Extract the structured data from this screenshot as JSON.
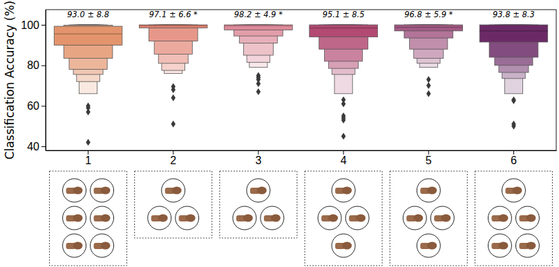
{
  "chart_data": {
    "type": "boxen",
    "y_label": "Classification Accuracy (%)",
    "categories": [
      "1",
      "2",
      "3",
      "4",
      "5",
      "6"
    ],
    "colors": [
      "#e3946c",
      "#e38373",
      "#dc8a99",
      "#b24a72",
      "#a45a85",
      "#6b2a66"
    ],
    "annotations": [
      "93.0 ± 8.8",
      "97.1 ± 6.6 *",
      "98.2 ± 4.9 *",
      "95.1 ± 8.5",
      "96.8 ± 5.9 *",
      "93.8 ± 8.3"
    ],
    "medians": [
      95.5,
      99.6,
      99.6,
      98.5,
      98.8,
      97.0
    ],
    "levels": [
      [
        [
          90,
          99.3
        ],
        [
          83.5,
          99.8
        ],
        [
          78,
          100
        ],
        [
          75.5,
          100
        ],
        [
          72,
          100
        ],
        [
          66,
          100
        ]
      ],
      [
        [
          98.5,
          100
        ],
        [
          92,
          100
        ],
        [
          85.5,
          100
        ],
        [
          81,
          100
        ],
        [
          77.5,
          100
        ],
        [
          76,
          100
        ]
      ],
      [
        [
          97.5,
          100
        ],
        [
          94.5,
          100
        ],
        [
          91,
          100
        ],
        [
          85,
          100
        ],
        [
          81.5,
          100
        ],
        [
          79,
          100
        ]
      ],
      [
        [
          94,
          100
        ],
        [
          88,
          100
        ],
        [
          82,
          100
        ],
        [
          78.5,
          100
        ],
        [
          75.5,
          100
        ],
        [
          66,
          100
        ]
      ],
      [
        [
          97,
          100
        ],
        [
          93.5,
          100
        ],
        [
          88,
          100
        ],
        [
          83.5,
          100
        ],
        [
          81,
          100
        ],
        [
          79,
          100
        ]
      ],
      [
        [
          91.5,
          100
        ],
        [
          84,
          100
        ],
        [
          80,
          100
        ],
        [
          76.5,
          100
        ],
        [
          73.5,
          100
        ],
        [
          66,
          100
        ]
      ]
    ],
    "outliers": [
      [
        60,
        59,
        57,
        42
      ],
      [
        69.5,
        68,
        64,
        51
      ],
      [
        75,
        74,
        73,
        71,
        67
      ],
      [
        63,
        61,
        55,
        54,
        53,
        45
      ],
      [
        73,
        70,
        66
      ],
      [
        63,
        62.5,
        51,
        50
      ]
    ],
    "gesture_counts": [
      6,
      3,
      3,
      4,
      4,
      5
    ],
    "ylim": [
      38,
      107.5
    ],
    "yticks": [
      40,
      60,
      80,
      100
    ],
    "grid": false
  }
}
